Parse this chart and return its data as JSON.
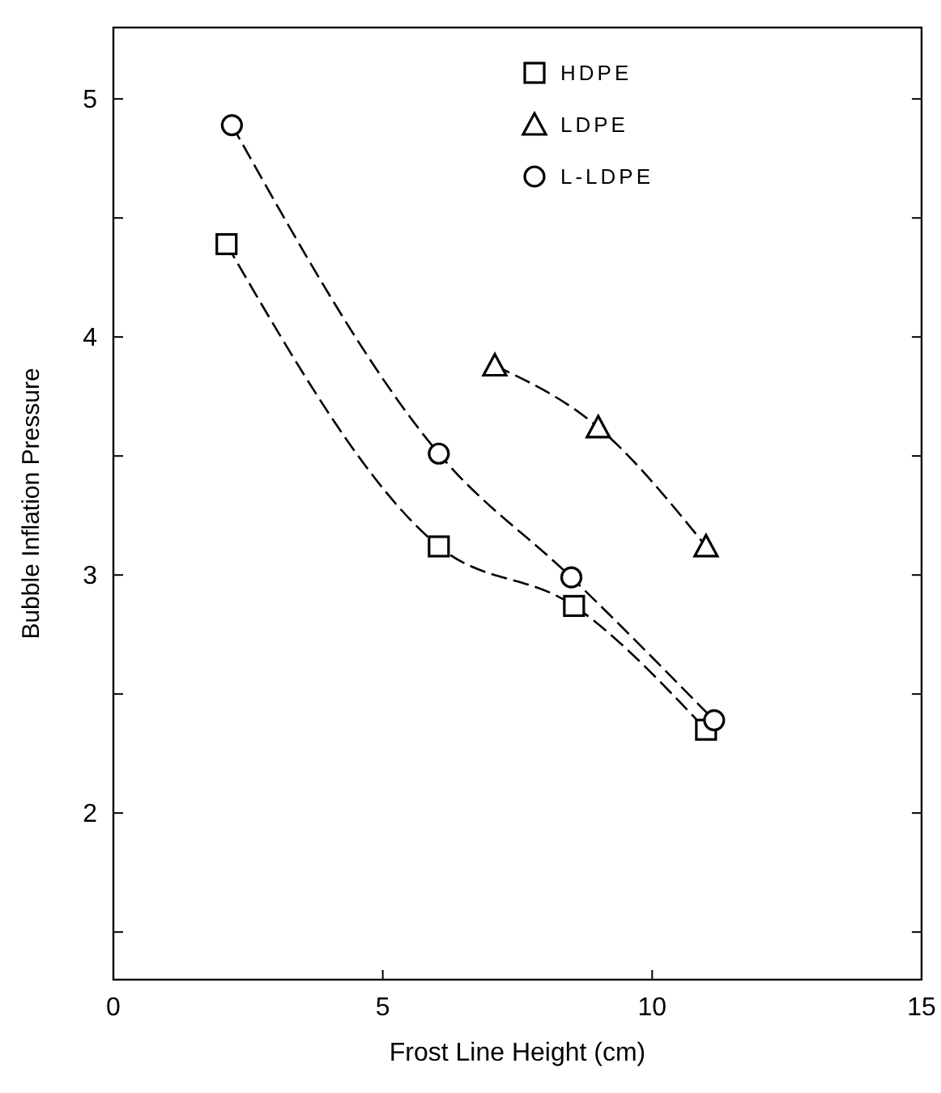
{
  "chart_data": {
    "type": "line",
    "xlabel": "Frost Line Height (cm)",
    "ylabel": "Bubble Inflation Pressure",
    "xlim": [
      0,
      15
    ],
    "xticks": [
      0,
      5,
      10,
      15
    ],
    "ylim": [
      1.3,
      5.3
    ],
    "yticks": [
      {
        "value": 1.5,
        "label": null
      },
      2,
      {
        "value": 2.5,
        "label": null
      },
      3,
      {
        "value": 3.5,
        "label": null
      },
      4,
      {
        "value": 4.5,
        "label": null
      },
      5
    ],
    "grid": false,
    "legend": "top right",
    "line_style": "dashed",
    "series": [
      {
        "name": "HDPE",
        "color": "#000000",
        "marker": "square",
        "x": [
          2.1,
          6.04,
          8.55,
          11.0
        ],
        "values": [
          4.39,
          3.12,
          2.87,
          2.35
        ]
      },
      {
        "name": "LDPE",
        "color": "#000000",
        "marker": "triangle",
        "x": [
          7.08,
          9.0,
          11.0
        ],
        "values": [
          3.88,
          3.62,
          3.12
        ]
      },
      {
        "name": "L-LDPE",
        "color": "#000000",
        "marker": "circle",
        "x": [
          2.2,
          6.04,
          8.5,
          11.15
        ],
        "values": [
          4.89,
          3.51,
          2.99,
          2.39
        ]
      }
    ]
  }
}
